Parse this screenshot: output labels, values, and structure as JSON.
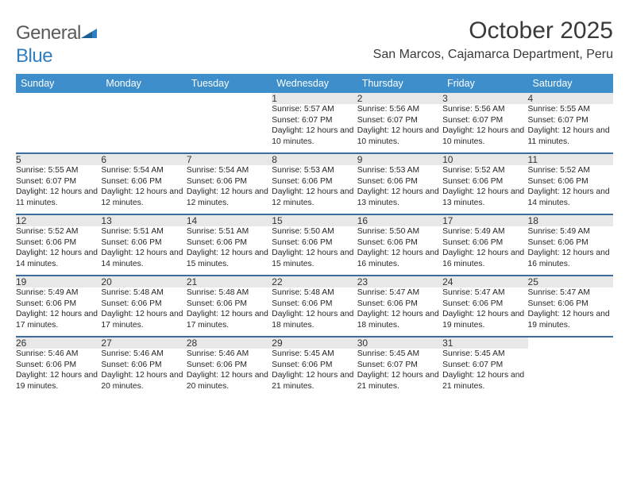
{
  "brand": {
    "name_a": "General",
    "name_b": "Blue"
  },
  "title": "October 2025",
  "location": "San Marcos, Cajamarca Department, Peru",
  "colors": {
    "header_bg": "#3d8ecb",
    "header_text": "#ffffff",
    "daynum_bg": "#e8e8e8",
    "row_border": "#3d6d9b",
    "body_text": "#262626",
    "title_text": "#3a3a3a",
    "logo_gray": "#5a5a5a",
    "logo_blue": "#2f7ec2"
  },
  "weekdays": [
    "Sunday",
    "Monday",
    "Tuesday",
    "Wednesday",
    "Thursday",
    "Friday",
    "Saturday"
  ],
  "weeks": [
    [
      {
        "n": "",
        "sr": "",
        "ss": "",
        "dl": ""
      },
      {
        "n": "",
        "sr": "",
        "ss": "",
        "dl": ""
      },
      {
        "n": "",
        "sr": "",
        "ss": "",
        "dl": ""
      },
      {
        "n": "1",
        "sr": "5:57 AM",
        "ss": "6:07 PM",
        "dl": "12 hours and 10 minutes."
      },
      {
        "n": "2",
        "sr": "5:56 AM",
        "ss": "6:07 PM",
        "dl": "12 hours and 10 minutes."
      },
      {
        "n": "3",
        "sr": "5:56 AM",
        "ss": "6:07 PM",
        "dl": "12 hours and 10 minutes."
      },
      {
        "n": "4",
        "sr": "5:55 AM",
        "ss": "6:07 PM",
        "dl": "12 hours and 11 minutes."
      }
    ],
    [
      {
        "n": "5",
        "sr": "5:55 AM",
        "ss": "6:07 PM",
        "dl": "12 hours and 11 minutes."
      },
      {
        "n": "6",
        "sr": "5:54 AM",
        "ss": "6:06 PM",
        "dl": "12 hours and 12 minutes."
      },
      {
        "n": "7",
        "sr": "5:54 AM",
        "ss": "6:06 PM",
        "dl": "12 hours and 12 minutes."
      },
      {
        "n": "8",
        "sr": "5:53 AM",
        "ss": "6:06 PM",
        "dl": "12 hours and 12 minutes."
      },
      {
        "n": "9",
        "sr": "5:53 AM",
        "ss": "6:06 PM",
        "dl": "12 hours and 13 minutes."
      },
      {
        "n": "10",
        "sr": "5:52 AM",
        "ss": "6:06 PM",
        "dl": "12 hours and 13 minutes."
      },
      {
        "n": "11",
        "sr": "5:52 AM",
        "ss": "6:06 PM",
        "dl": "12 hours and 14 minutes."
      }
    ],
    [
      {
        "n": "12",
        "sr": "5:52 AM",
        "ss": "6:06 PM",
        "dl": "12 hours and 14 minutes."
      },
      {
        "n": "13",
        "sr": "5:51 AM",
        "ss": "6:06 PM",
        "dl": "12 hours and 14 minutes."
      },
      {
        "n": "14",
        "sr": "5:51 AM",
        "ss": "6:06 PM",
        "dl": "12 hours and 15 minutes."
      },
      {
        "n": "15",
        "sr": "5:50 AM",
        "ss": "6:06 PM",
        "dl": "12 hours and 15 minutes."
      },
      {
        "n": "16",
        "sr": "5:50 AM",
        "ss": "6:06 PM",
        "dl": "12 hours and 16 minutes."
      },
      {
        "n": "17",
        "sr": "5:49 AM",
        "ss": "6:06 PM",
        "dl": "12 hours and 16 minutes."
      },
      {
        "n": "18",
        "sr": "5:49 AM",
        "ss": "6:06 PM",
        "dl": "12 hours and 16 minutes."
      }
    ],
    [
      {
        "n": "19",
        "sr": "5:49 AM",
        "ss": "6:06 PM",
        "dl": "12 hours and 17 minutes."
      },
      {
        "n": "20",
        "sr": "5:48 AM",
        "ss": "6:06 PM",
        "dl": "12 hours and 17 minutes."
      },
      {
        "n": "21",
        "sr": "5:48 AM",
        "ss": "6:06 PM",
        "dl": "12 hours and 17 minutes."
      },
      {
        "n": "22",
        "sr": "5:48 AM",
        "ss": "6:06 PM",
        "dl": "12 hours and 18 minutes."
      },
      {
        "n": "23",
        "sr": "5:47 AM",
        "ss": "6:06 PM",
        "dl": "12 hours and 18 minutes."
      },
      {
        "n": "24",
        "sr": "5:47 AM",
        "ss": "6:06 PM",
        "dl": "12 hours and 19 minutes."
      },
      {
        "n": "25",
        "sr": "5:47 AM",
        "ss": "6:06 PM",
        "dl": "12 hours and 19 minutes."
      }
    ],
    [
      {
        "n": "26",
        "sr": "5:46 AM",
        "ss": "6:06 PM",
        "dl": "12 hours and 19 minutes."
      },
      {
        "n": "27",
        "sr": "5:46 AM",
        "ss": "6:06 PM",
        "dl": "12 hours and 20 minutes."
      },
      {
        "n": "28",
        "sr": "5:46 AM",
        "ss": "6:06 PM",
        "dl": "12 hours and 20 minutes."
      },
      {
        "n": "29",
        "sr": "5:45 AM",
        "ss": "6:06 PM",
        "dl": "12 hours and 21 minutes."
      },
      {
        "n": "30",
        "sr": "5:45 AM",
        "ss": "6:07 PM",
        "dl": "12 hours and 21 minutes."
      },
      {
        "n": "31",
        "sr": "5:45 AM",
        "ss": "6:07 PM",
        "dl": "12 hours and 21 minutes."
      },
      {
        "n": "",
        "sr": "",
        "ss": "",
        "dl": ""
      }
    ]
  ],
  "labels": {
    "sunrise": "Sunrise:",
    "sunset": "Sunset:",
    "daylight": "Daylight:"
  }
}
